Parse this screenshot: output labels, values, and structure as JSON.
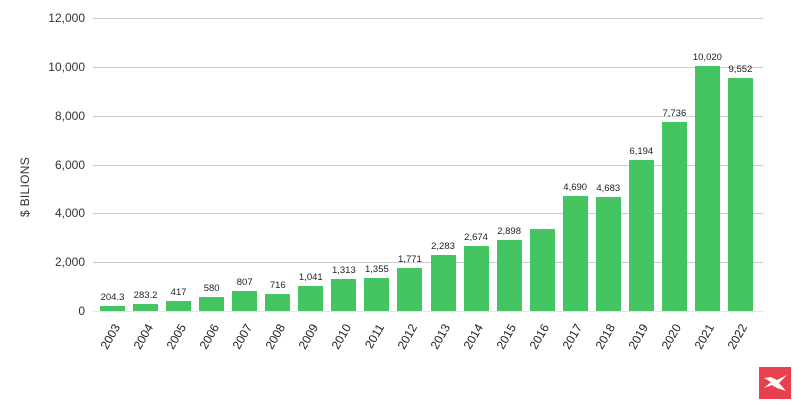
{
  "chart_data": {
    "type": "bar",
    "title": "",
    "xlabel": "",
    "ylabel": "$ BILIONS",
    "ylim": [
      0,
      12000
    ],
    "yticks": [
      0,
      2000,
      4000,
      6000,
      8000,
      10000,
      12000
    ],
    "ytick_labels": [
      "0",
      "2,000",
      "4,000",
      "6,000",
      "8,000",
      "10,000",
      "12,000"
    ],
    "grid": true,
    "bar_color": "#45c562",
    "categories": [
      "2003",
      "2004",
      "2005",
      "2006",
      "2007",
      "2008",
      "2009",
      "2010",
      "2011",
      "2012",
      "2013",
      "2014",
      "2015",
      "2016",
      "2017",
      "2018",
      "2019",
      "2020",
      "2021",
      "2022"
    ],
    "values": [
      204.3,
      283.2,
      417,
      580,
      807,
      716,
      1041,
      1313,
      1355,
      1771,
      2283,
      2674,
      2898,
      3350,
      4690,
      4683,
      6194,
      7736,
      10020,
      9552
    ],
    "data_labels": [
      "204.3",
      "283.2",
      "417",
      "580",
      "807",
      "716",
      "1,041",
      "1,313",
      "1,355",
      "1,771",
      "2,283",
      "2,674",
      "2,898",
      "",
      "4,690",
      "4,683",
      "6,194",
      "7,736",
      "10,020",
      "9,552"
    ]
  },
  "logo": {
    "name": "xtb-logo",
    "color": "#e8404f"
  }
}
